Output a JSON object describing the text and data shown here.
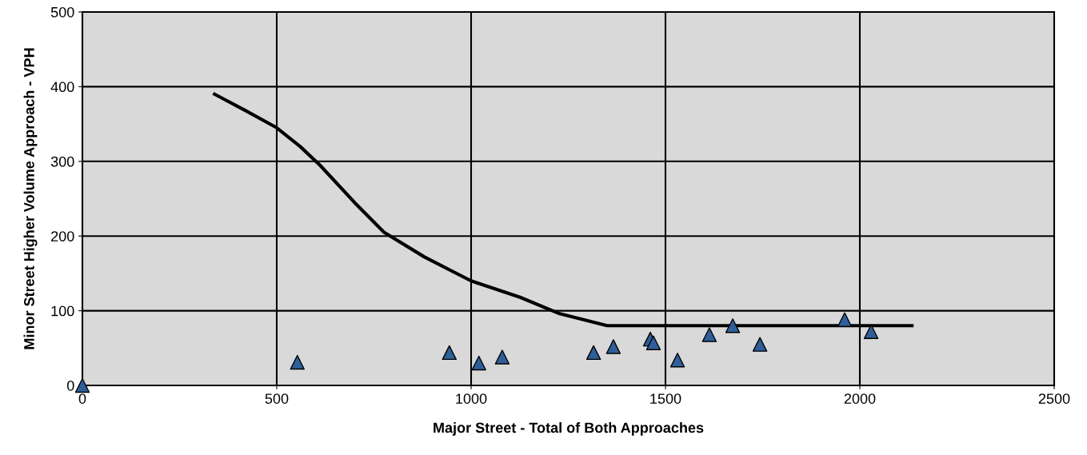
{
  "chart_data": {
    "type": "scatter",
    "xlabel": "Major Street - Total of Both Approaches",
    "ylabel": "Minor Street Higher Volume Approach - VPH",
    "xlim": [
      0,
      2500
    ],
    "ylim": [
      0,
      500
    ],
    "xticks": [
      0,
      500,
      1000,
      1500,
      2000,
      2500
    ],
    "yticks": [
      0,
      100,
      200,
      300,
      400,
      500
    ],
    "grid": true,
    "legend": false,
    "series": [
      {
        "type": "line",
        "color": "#000000",
        "marker": "none",
        "line_style": "solid",
        "x": [
          340,
          420,
          500,
          560,
          611,
          700,
          776,
          880,
          1000,
          1126,
          1228,
          1350,
          2134
        ],
        "values": [
          390,
          368,
          345,
          320,
          295,
          245,
          205,
          172,
          140,
          118,
          96,
          80,
          80
        ]
      },
      {
        "color": "#2e5f99",
        "marker": "triangle",
        "x": [
          0,
          553,
          944,
          1020,
          1080,
          1315,
          1366,
          1461,
          1469,
          1531,
          1613,
          1673,
          1743,
          1961,
          2029
        ],
        "values": [
          0,
          31,
          44,
          30,
          38,
          44,
          52,
          62,
          57,
          34,
          68,
          80,
          55,
          88,
          72
        ]
      }
    ]
  }
}
